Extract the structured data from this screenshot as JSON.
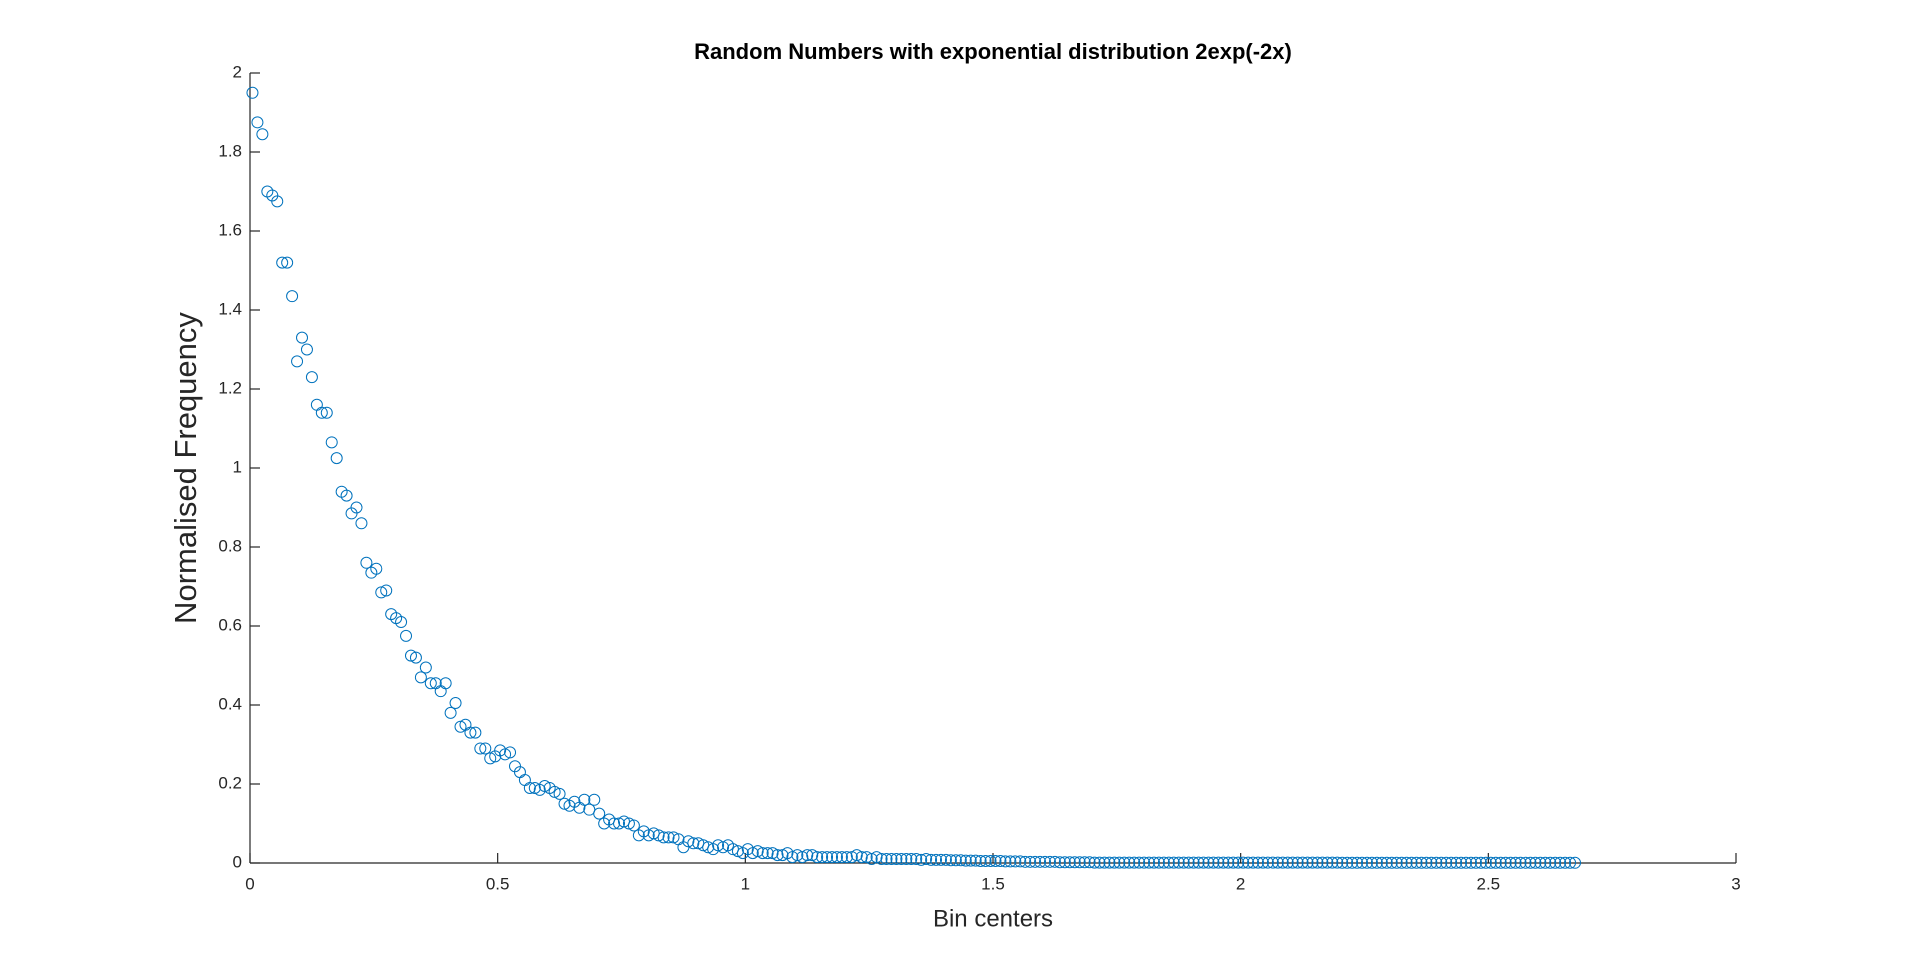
{
  "chart_data": {
    "type": "scatter",
    "title": "Random Numbers with exponential distribution 2exp(-2x)",
    "x_label": "Bin centers",
    "y_label": "Normalised Frequency",
    "color": "#0072bd",
    "xlim": [
      0,
      3
    ],
    "xticks": [
      0,
      0.5,
      1,
      1.5,
      2,
      2.5,
      3
    ],
    "ylim": [
      0,
      2
    ],
    "yticks": [
      0,
      0.2,
      0.4,
      0.6,
      0.8,
      1,
      1.2,
      1.4,
      1.6,
      1.8,
      2
    ],
    "x": [
      0.005,
      0.015,
      0.025,
      0.035,
      0.045,
      0.055,
      0.065,
      0.075,
      0.085,
      0.095,
      0.105,
      0.115,
      0.125,
      0.135,
      0.145,
      0.155,
      0.165,
      0.175,
      0.185,
      0.195,
      0.205,
      0.215,
      0.225,
      0.235,
      0.245,
      0.255,
      0.265,
      0.275,
      0.285,
      0.295,
      0.305,
      0.315,
      0.325,
      0.335,
      0.345,
      0.355,
      0.365,
      0.375,
      0.385,
      0.395,
      0.405,
      0.415,
      0.425,
      0.435,
      0.445,
      0.455,
      0.465,
      0.475,
      0.485,
      0.495,
      0.505,
      0.515,
      0.525,
      0.535,
      0.545,
      0.555,
      0.565,
      0.575,
      0.585,
      0.595,
      0.605,
      0.615,
      0.625,
      0.635,
      0.645,
      0.655,
      0.665,
      0.675,
      0.685,
      0.695,
      0.705,
      0.715,
      0.725,
      0.735,
      0.745,
      0.755,
      0.765,
      0.775,
      0.785,
      0.795,
      0.805,
      0.815,
      0.825,
      0.835,
      0.845,
      0.855,
      0.865,
      0.875,
      0.885,
      0.895,
      0.905,
      0.915,
      0.925,
      0.935,
      0.945,
      0.955,
      0.965,
      0.975,
      0.985,
      0.995,
      1.005,
      1.015,
      1.025,
      1.035,
      1.045,
      1.055,
      1.065,
      1.075,
      1.085,
      1.095,
      1.105,
      1.115,
      1.125,
      1.135,
      1.145,
      1.155,
      1.165,
      1.175,
      1.185,
      1.195,
      1.205,
      1.215,
      1.225,
      1.235,
      1.245,
      1.255,
      1.265,
      1.275,
      1.285,
      1.295,
      1.305,
      1.315,
      1.325,
      1.335,
      1.345,
      1.355,
      1.365,
      1.375,
      1.385,
      1.395,
      1.405,
      1.415,
      1.425,
      1.435,
      1.445,
      1.455,
      1.465,
      1.475,
      1.485,
      1.495,
      1.505,
      1.515,
      1.525,
      1.535,
      1.545,
      1.555,
      1.565,
      1.575,
      1.585,
      1.595,
      1.605,
      1.615,
      1.625,
      1.635,
      1.645,
      1.655,
      1.665,
      1.675,
      1.685,
      1.695,
      1.705,
      1.715,
      1.725,
      1.735,
      1.745,
      1.755,
      1.765,
      1.775,
      1.785,
      1.795,
      1.805,
      1.815,
      1.825,
      1.835,
      1.845,
      1.855,
      1.865,
      1.875,
      1.885,
      1.895,
      1.905,
      1.915,
      1.925,
      1.935,
      1.945,
      1.955,
      1.965,
      1.975,
      1.985,
      1.995,
      2.005,
      2.015,
      2.025,
      2.035,
      2.045,
      2.055,
      2.065,
      2.075,
      2.085,
      2.095,
      2.105,
      2.115,
      2.125,
      2.135,
      2.145,
      2.155,
      2.165,
      2.175,
      2.185,
      2.195,
      2.205,
      2.215,
      2.225,
      2.235,
      2.245,
      2.255,
      2.265,
      2.275,
      2.285,
      2.295,
      2.305,
      2.315,
      2.325,
      2.335,
      2.345,
      2.355,
      2.365,
      2.375,
      2.385,
      2.395,
      2.405,
      2.415,
      2.425,
      2.435,
      2.445,
      2.455,
      2.465,
      2.475,
      2.485,
      2.495,
      2.505,
      2.515,
      2.525,
      2.535,
      2.545,
      2.555,
      2.565,
      2.575,
      2.585,
      2.595,
      2.605,
      2.615,
      2.625,
      2.635,
      2.645,
      2.655,
      2.665,
      2.675
    ],
    "values": [
      1.95,
      1.875,
      1.845,
      1.7,
      1.69,
      1.675,
      1.52,
      1.52,
      1.435,
      1.27,
      1.33,
      1.3,
      1.23,
      1.16,
      1.14,
      1.14,
      1.065,
      1.025,
      0.94,
      0.93,
      0.885,
      0.9,
      0.86,
      0.76,
      0.735,
      0.745,
      0.685,
      0.69,
      0.63,
      0.62,
      0.61,
      0.575,
      0.525,
      0.52,
      0.47,
      0.495,
      0.455,
      0.455,
      0.435,
      0.455,
      0.38,
      0.405,
      0.345,
      0.35,
      0.33,
      0.33,
      0.29,
      0.29,
      0.265,
      0.27,
      0.285,
      0.275,
      0.28,
      0.245,
      0.23,
      0.21,
      0.19,
      0.19,
      0.185,
      0.195,
      0.19,
      0.18,
      0.175,
      0.15,
      0.145,
      0.155,
      0.14,
      0.16,
      0.135,
      0.16,
      0.125,
      0.1,
      0.11,
      0.1,
      0.1,
      0.105,
      0.1,
      0.095,
      0.07,
      0.08,
      0.07,
      0.075,
      0.07,
      0.065,
      0.065,
      0.065,
      0.06,
      0.04,
      0.055,
      0.05,
      0.05,
      0.045,
      0.04,
      0.035,
      0.045,
      0.04,
      0.045,
      0.035,
      0.03,
      0.025,
      0.035,
      0.025,
      0.03,
      0.025,
      0.025,
      0.025,
      0.02,
      0.02,
      0.025,
      0.015,
      0.02,
      0.015,
      0.02,
      0.02,
      0.015,
      0.015,
      0.015,
      0.015,
      0.015,
      0.015,
      0.015,
      0.015,
      0.02,
      0.015,
      0.015,
      0.01,
      0.015,
      0.01,
      0.01,
      0.01,
      0.01,
      0.01,
      0.01,
      0.01,
      0.01,
      0.008,
      0.01,
      0.008,
      0.008,
      0.008,
      0.008,
      0.007,
      0.007,
      0.007,
      0.006,
      0.006,
      0.006,
      0.005,
      0.005,
      0.005,
      0.005,
      0.005,
      0.004,
      0.004,
      0.004,
      0.004,
      0.003,
      0.003,
      0.003,
      0.003,
      0.003,
      0.003,
      0.003,
      0.002,
      0.002,
      0.002,
      0.002,
      0.002,
      0.002,
      0.002,
      0.001,
      0.001,
      0.001,
      0.001,
      0.001,
      0.001,
      0.001,
      0.001,
      0.001,
      0.001,
      0.001,
      0.001,
      0.001,
      0.001,
      0.001,
      0.001,
      0.001,
      0.001,
      0.001,
      0.001,
      0.001,
      0.001,
      0.001,
      0.001,
      0.001,
      0.001,
      0.001,
      0.001,
      0.001,
      0.001,
      0.001,
      0.001,
      0.001,
      0.001,
      0.001,
      0.001,
      0.001,
      0.001,
      0.001,
      0.001,
      0.001,
      0.001,
      0.001,
      0.001,
      0.001,
      0.001,
      0.001,
      0.001,
      0.001,
      0.001,
      0.0005,
      0.0005,
      0.0005,
      0.0005,
      0.0005,
      0.0005,
      0.0005,
      0.0005,
      0.0005,
      0.0005,
      0.0005,
      0.0005,
      0.0005,
      0.0005,
      0.0005,
      0.0005,
      0.0005,
      0.0005,
      0.0005,
      0.0005,
      0.0005,
      0.0005,
      0.0005,
      0.0005,
      0.0005,
      0.0005,
      0.0005,
      0.0005,
      0.0005,
      0.0005,
      0.0005,
      0.0005,
      0.0005,
      0.0005,
      0.0005,
      0.0005,
      0.0005,
      0.0005,
      0.0005,
      0.0005,
      0.0005,
      0.0005,
      0.0005,
      0.0005,
      0.0005,
      0.0005,
      0.0005,
      0.0005
    ]
  }
}
